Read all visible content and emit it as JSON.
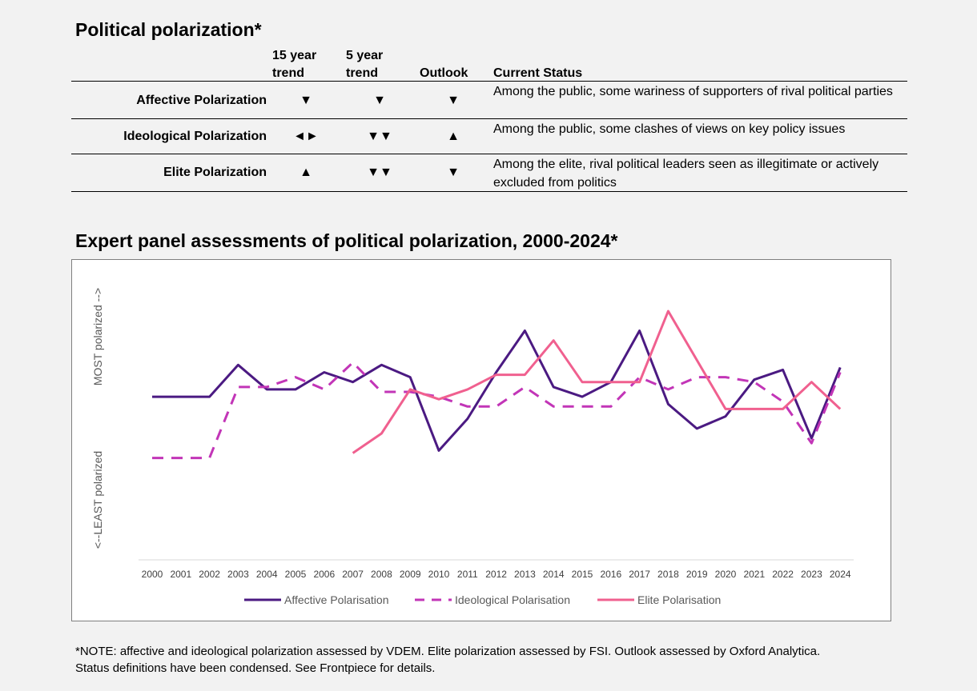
{
  "section1": {
    "title": "Political polarization*",
    "headers": {
      "trend15_line1": "15 year",
      "trend15_line2": "trend",
      "trend5_line1": "5 year",
      "trend5_line2": "trend",
      "outlook": "Outlook",
      "status": "Current Status"
    },
    "rows": [
      {
        "label": "Affective Polarization",
        "trend15": "▼",
        "trend5": "▼",
        "outlook": "▼",
        "status": "Among the public, some wariness of supporters of rival political parties"
      },
      {
        "label": "Ideological Polarization",
        "trend15": "◄►",
        "trend5": "▼▼",
        "outlook": "▲",
        "status": "Among the public, some clashes of views on key policy issues"
      },
      {
        "label": "Elite Polarization",
        "trend15": "▲",
        "trend5": "▼▼",
        "outlook": "▼",
        "status": "Among the elite, rival political leaders seen as illegitimate or actively excluded from politics"
      }
    ]
  },
  "section2": {
    "title": "Expert panel assessments of political polarization, 2000-2024*"
  },
  "chart_data": {
    "type": "line",
    "title": "",
    "ylabel_top": "MOST polarized -->",
    "ylabel_bottom": "<--LEAST polarized",
    "ylim": [
      0,
      100
    ],
    "grid": false,
    "legend_position": "bottom",
    "x": [
      "2000",
      "2001",
      "2002",
      "2003",
      "2004",
      "2005",
      "2006",
      "2007",
      "2008",
      "2009",
      "2010",
      "2011",
      "2012",
      "2013",
      "2014",
      "2015",
      "2016",
      "2017",
      "2018",
      "2019",
      "2020",
      "2021",
      "2022",
      "2023",
      "2024"
    ],
    "series": [
      {
        "name": "Affective Polarisation",
        "color": "#4b1a82",
        "dash": "solid",
        "values": [
          65,
          65,
          65,
          78,
          68,
          68,
          75,
          71,
          78,
          73,
          43,
          56,
          75,
          92,
          69,
          65,
          71,
          92,
          62,
          52,
          57,
          72,
          76,
          48,
          77
        ]
      },
      {
        "name": "Ideological Polarisation",
        "color": "#c235b7",
        "dash": "dashed",
        "values": [
          40,
          40,
          40,
          69,
          69,
          73,
          68,
          79,
          67,
          67,
          65,
          61,
          61,
          69,
          61,
          61,
          61,
          73,
          68,
          73,
          73,
          71,
          63,
          46,
          75
        ]
      },
      {
        "name": "Elite Polarisation",
        "color": "#f0608f",
        "dash": "solid",
        "values": [
          null,
          null,
          null,
          null,
          null,
          null,
          null,
          42,
          50,
          68,
          64,
          68,
          74,
          74,
          88,
          71,
          71,
          71,
          100,
          80,
          60,
          60,
          60,
          71,
          60
        ]
      }
    ]
  },
  "note": {
    "line1": "*NOTE: affective and ideological polarization assessed by VDEM. Elite polarization assessed by FSI. Outlook assessed by Oxford Analytica.",
    "line2": "Status definitions have been condensed. See Frontpiece for details."
  }
}
